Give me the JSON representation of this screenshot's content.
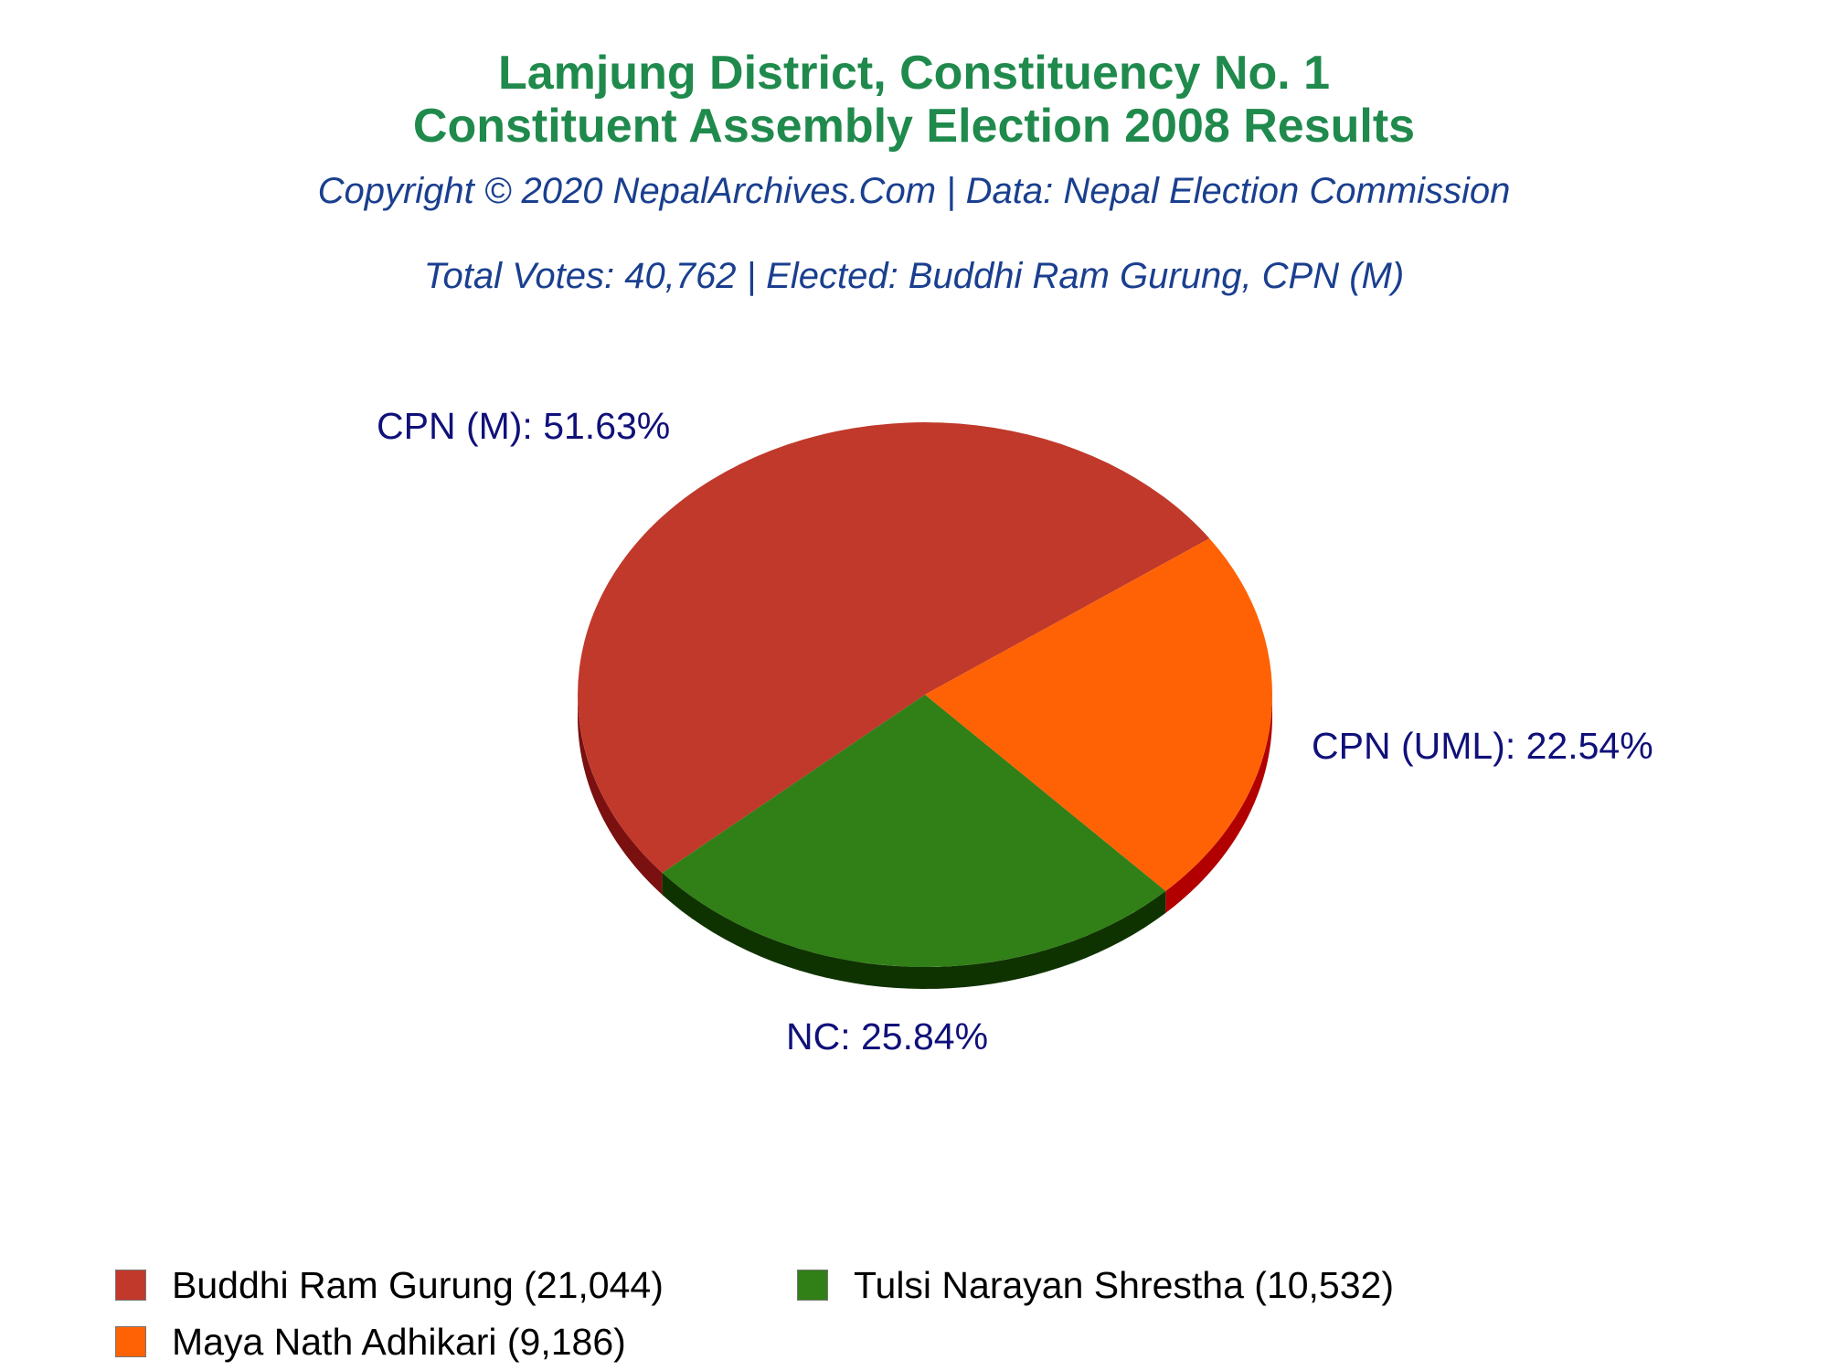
{
  "chart_data": {
    "type": "pie",
    "title_lines": [
      "Lamjung District, Constituency No. 1",
      "Constituent Assembly Election 2008 Results"
    ],
    "subtitle_lines": [
      "Copyright © 2020 NepalArchives.Com | Data: Nepal Election Commission",
      "Total Votes: 40,762 | Elected: Buddhi Ram Gurung, CPN (M)"
    ],
    "slices": [
      {
        "party": "CPN (M)",
        "candidate": "Buddhi Ram Gurung",
        "votes": 21044,
        "percent": 51.63,
        "label": "CPN (M): 51.63%",
        "legend": "Buddhi Ram Gurung (21,044)",
        "color": "#C0392B",
        "side_color": "#7A1010"
      },
      {
        "party": "NC",
        "candidate": "Tulsi Narayan Shrestha",
        "votes": 10532,
        "percent": 25.84,
        "label": "NC: 25.84%",
        "legend": "Tulsi Narayan Shrestha (10,532)",
        "color": "#317F17",
        "side_color": "#0F3300"
      },
      {
        "party": "CPN (UML)",
        "candidate": "Maya Nath Adhikari",
        "votes": 9186,
        "percent": 22.54,
        "label": "CPN (UML): 22.54%",
        "legend": "Maya Nath Adhikari (9,186)",
        "color": "#FF6204",
        "side_color": "#B20000"
      }
    ],
    "style": "3d",
    "legend_position": "bottom"
  },
  "colors": {
    "title": "#1F8A4C",
    "subtitle": "#1A3F8F",
    "label": "#10107A"
  }
}
